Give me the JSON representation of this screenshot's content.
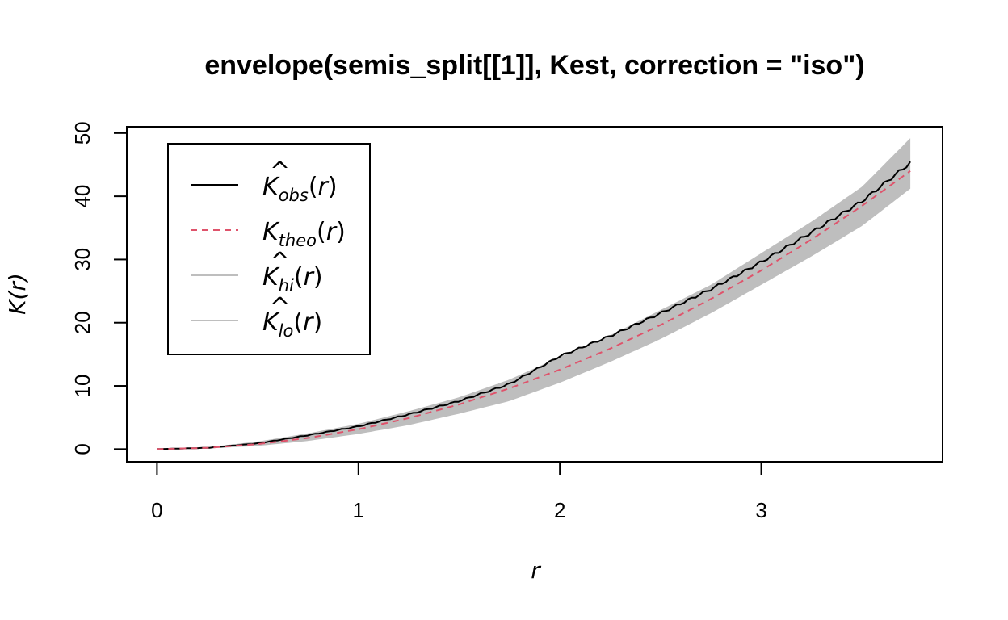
{
  "chart_data": {
    "type": "line",
    "title": "envelope(semis_split[[1]], Kest, correction = \"iso\")",
    "xlabel": "r",
    "ylabel": "K(r)",
    "xlim": [
      -0.15,
      3.9
    ],
    "ylim": [
      -2,
      51
    ],
    "xticks": [
      "0",
      "1",
      "2",
      "3"
    ],
    "yticks": [
      "0",
      "10",
      "20",
      "30",
      "40",
      "50"
    ],
    "grid": false,
    "legend_position": "top-left",
    "x": [
      0,
      0.25,
      0.5,
      0.75,
      1.0,
      1.25,
      1.5,
      1.75,
      2.0,
      2.25,
      2.5,
      2.75,
      3.0,
      3.25,
      3.5,
      3.74
    ],
    "series": [
      {
        "name": "K_obs(r)",
        "legend_main": "K",
        "legend_sub": "obs",
        "style": "solid",
        "color": "#000000",
        "values": [
          0,
          0.2,
          0.9,
          2.2,
          3.6,
          5.5,
          7.6,
          10.3,
          14.7,
          17.9,
          21.5,
          25.3,
          29.6,
          34.3,
          39.2,
          45.3
        ]
      },
      {
        "name": "K_theo(r)",
        "legend_main": "K",
        "legend_sub": "theo",
        "style": "dashed",
        "color": "#DF536B",
        "values": [
          0,
          0.2,
          0.79,
          1.77,
          3.14,
          4.91,
          7.07,
          9.62,
          12.57,
          15.9,
          19.63,
          23.76,
          28.27,
          33.18,
          38.48,
          44.0
        ]
      },
      {
        "name": "K_hi(r)",
        "legend_main": "K",
        "legend_sub": "hi",
        "style": "band-upper",
        "color": "#BEBEBE",
        "values": [
          0,
          0.3,
          1.2,
          2.5,
          4.0,
          6.0,
          8.2,
          11.0,
          14.6,
          18.0,
          22.0,
          26.0,
          31.0,
          36.0,
          41.5,
          49.2
        ]
      },
      {
        "name": "K_lo(r)",
        "legend_main": "K",
        "legend_sub": "lo",
        "style": "band-lower",
        "color": "#BEBEBE",
        "values": [
          0,
          0.1,
          0.5,
          1.3,
          2.4,
          3.8,
          5.6,
          7.6,
          10.5,
          13.8,
          17.4,
          21.5,
          26.0,
          30.5,
          35.3,
          41.2
        ]
      }
    ]
  }
}
